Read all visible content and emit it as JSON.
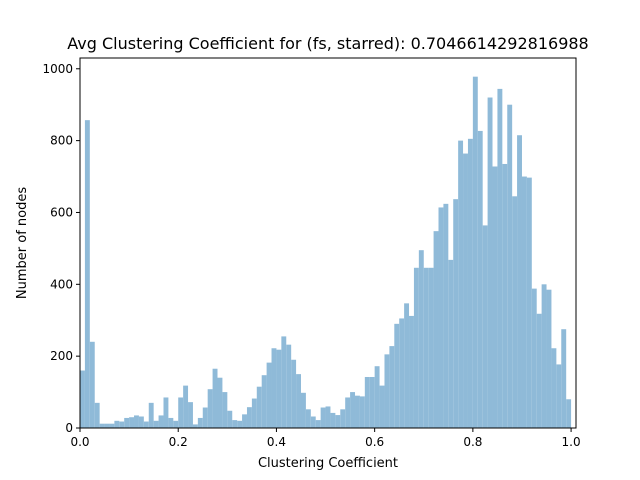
{
  "chart_data": {
    "type": "bar",
    "title": "Avg Clustering Coefficient for (fs, starred): 0.7046614292816988",
    "xlabel": "Clustering Coefficient",
    "ylabel": "Number of nodes",
    "xlim": [
      0.0,
      1.01
    ],
    "ylim": [
      0,
      1030
    ],
    "xticks": [
      0.0,
      0.2,
      0.4,
      0.6,
      0.8,
      1.0
    ],
    "xtick_labels": [
      "0.0",
      "0.2",
      "0.4",
      "0.6",
      "0.8",
      "1.0"
    ],
    "yticks": [
      0,
      200,
      400,
      600,
      800,
      1000
    ],
    "ytick_labels": [
      "0",
      "200",
      "400",
      "600",
      "800",
      "1000"
    ],
    "bar_color": "#8fbad8",
    "bin_width": 0.01,
    "bin_starts": [
      0.0,
      0.01,
      0.02,
      0.03,
      0.04,
      0.05,
      0.06,
      0.07,
      0.08,
      0.09,
      0.1,
      0.11,
      0.12,
      0.13,
      0.14,
      0.15,
      0.16,
      0.17,
      0.18,
      0.19,
      0.2,
      0.21,
      0.22,
      0.23,
      0.24,
      0.25,
      0.26,
      0.27,
      0.28,
      0.29,
      0.3,
      0.31,
      0.32,
      0.33,
      0.34,
      0.35,
      0.36,
      0.37,
      0.38,
      0.39,
      0.4,
      0.41,
      0.42,
      0.43,
      0.44,
      0.45,
      0.46,
      0.47,
      0.48,
      0.49,
      0.5,
      0.51,
      0.52,
      0.53,
      0.54,
      0.55,
      0.56,
      0.57,
      0.58,
      0.59,
      0.6,
      0.61,
      0.62,
      0.63,
      0.64,
      0.65,
      0.66,
      0.67,
      0.68,
      0.69,
      0.7,
      0.71,
      0.72,
      0.73,
      0.74,
      0.75,
      0.76,
      0.77,
      0.78,
      0.79,
      0.8,
      0.81,
      0.82,
      0.83,
      0.84,
      0.85,
      0.86,
      0.87,
      0.88,
      0.89,
      0.9,
      0.91,
      0.92,
      0.93,
      0.94,
      0.95,
      0.96,
      0.97,
      0.98,
      0.99
    ],
    "values": [
      160,
      857,
      240,
      70,
      12,
      12,
      12,
      20,
      18,
      28,
      30,
      35,
      32,
      18,
      70,
      20,
      35,
      85,
      28,
      20,
      85,
      118,
      72,
      10,
      28,
      57,
      108,
      165,
      140,
      100,
      48,
      22,
      20,
      38,
      58,
      82,
      115,
      147,
      182,
      222,
      218,
      255,
      232,
      190,
      150,
      98,
      52,
      32,
      22,
      57,
      60,
      42,
      36,
      52,
      85,
      100,
      90,
      88,
      142,
      142,
      172,
      118,
      205,
      228,
      290,
      305,
      347,
      312,
      446,
      495,
      446,
      446,
      548,
      614,
      624,
      468,
      637,
      800,
      764,
      805,
      978,
      827,
      564,
      920,
      728,
      944,
      735,
      900,
      645,
      815,
      700,
      697,
      388,
      318,
      400,
      385,
      222,
      177,
      275,
      80
    ]
  }
}
